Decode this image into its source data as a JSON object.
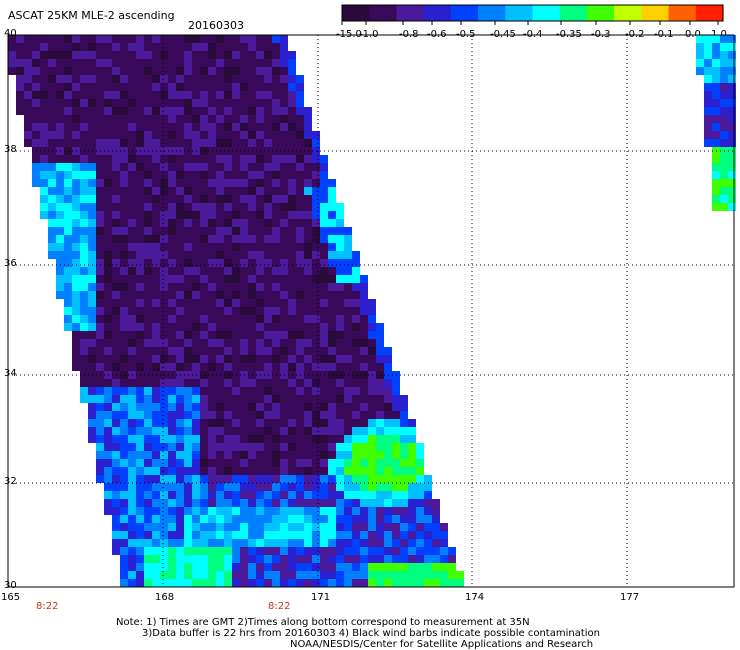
{
  "header": {
    "title": "ASCAT 25KM MLE-2 ascending",
    "date": "20160303"
  },
  "colorbar": {
    "labels": [
      "-15.0",
      "-1.0",
      "-0.8",
      "-0.6",
      "-0.5",
      "-0.45",
      "-0.4",
      "-0.35",
      "-0.3",
      "-0.2",
      "-0.1",
      "0.0",
      "1.0"
    ],
    "colors": [
      "#2a0a3a",
      "#3a0a5a",
      "#4a1a9a",
      "#2a20d0",
      "#0040ff",
      "#0080ff",
      "#00c0ff",
      "#00ffff",
      "#00ff80",
      "#40ff00",
      "#c0ff00",
      "#ffd000",
      "#ff6000",
      "#ff2000"
    ]
  },
  "axes": {
    "lat_labels": [
      "40",
      "38",
      "36",
      "34",
      "32",
      "30"
    ],
    "lon_labels": [
      "165",
      "168",
      "171",
      "174",
      "177"
    ]
  },
  "times": {
    "left": "8:22",
    "middle": "8:22"
  },
  "notes": {
    "line1": "Note: 1) Times are GMT 2)Times along bottom correspond to measurement at 35N",
    "line2": "3)Data buffer is 22 hrs from 20160303 4) Black wind barbs indicate possible contamination",
    "line3": "NOAA/NESDIS/Center for Satellite Applications and Research"
  }
}
